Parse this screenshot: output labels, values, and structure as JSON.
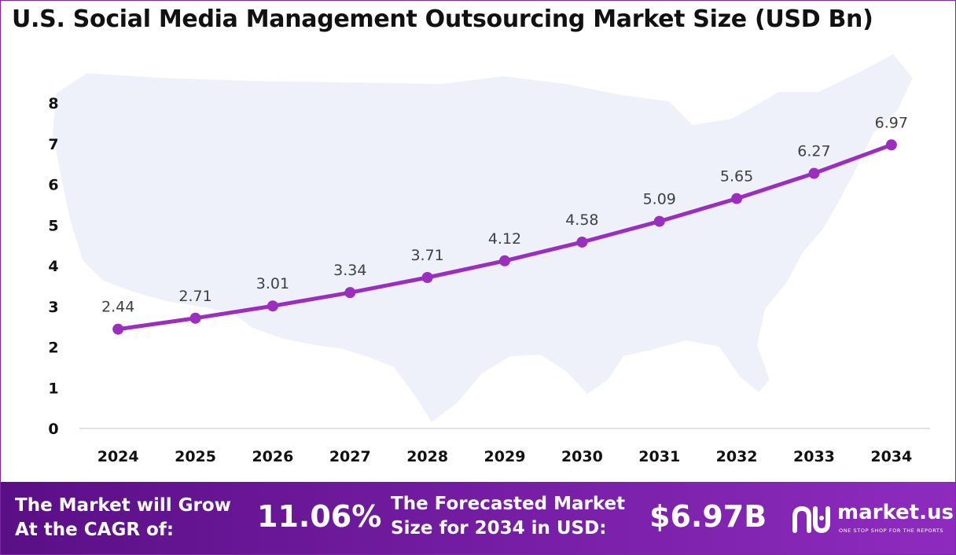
{
  "colors": {
    "line": "#9b2dbf",
    "footer_start": "#5a0f86",
    "footer_end": "#8e2bbf",
    "map": "#eef1f9"
  },
  "chart_data": {
    "type": "line",
    "title": "U.S. Social Media Management Outsourcing Market Size (USD Bn)",
    "xlabel": "",
    "ylabel": "",
    "categories": [
      "2024",
      "2025",
      "2026",
      "2027",
      "2028",
      "2029",
      "2030",
      "2031",
      "2032",
      "2033",
      "2034"
    ],
    "values": [
      2.44,
      2.71,
      3.01,
      3.34,
      3.71,
      4.12,
      4.58,
      5.09,
      5.65,
      6.27,
      6.97
    ],
    "value_labels": [
      "2.44",
      "2.71",
      "3.01",
      "3.34",
      "3.71",
      "4.12",
      "4.58",
      "5.09",
      "5.65",
      "6.27",
      "6.97"
    ],
    "yticks": [
      "0",
      "1",
      "2",
      "3",
      "4",
      "5",
      "6",
      "7",
      "8"
    ],
    "ylim": [
      0,
      8
    ],
    "grid": false,
    "legend": "none"
  },
  "footer": {
    "cagr_label_line1": "The Market will Grow",
    "cagr_label_line2": "At the CAGR of:",
    "cagr_value": "11.06%",
    "forecast_label_line1": "The Forecasted Market",
    "forecast_label_line2": "Size for 2034 in USD:",
    "forecast_value": "$6.97B",
    "brand_name": "market.us",
    "brand_tagline": "ONE STOP SHOP FOR THE REPORTS"
  }
}
